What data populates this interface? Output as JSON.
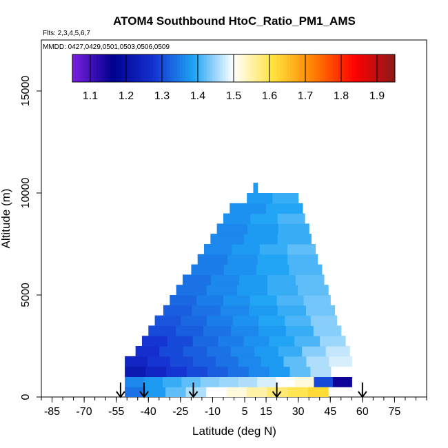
{
  "chart_data": {
    "type": "heatmap",
    "title": "ATOM4 Southbound HtoC_Ratio_PM1_AMS",
    "flights_label": "Flts: 2,3,4,5,6,7",
    "mmdd_label": "MMDD: 0427,0429,0501,0503,0506,0509",
    "xlabel": "Latitude (deg N)",
    "ylabel": "Altitude (m)",
    "xlim": [
      -90,
      90
    ],
    "ylim": [
      0,
      17500
    ],
    "x_ticks": [
      "-85",
      "-70",
      "-55",
      "-40",
      "-25",
      "-10",
      "5",
      "15",
      "30",
      "45",
      "60",
      "75"
    ],
    "x_tick_values": [
      -85,
      -70,
      -55,
      -40,
      -25,
      -10,
      5,
      15,
      30,
      45,
      60,
      75
    ],
    "y_ticks": [
      "0",
      "5000",
      "10000",
      "15000"
    ],
    "y_tick_values": [
      0,
      5000,
      10000,
      15000
    ],
    "colorbar": {
      "min": 1.05,
      "max": 1.95,
      "ticks": [
        "1.1",
        "1.2",
        "1.3",
        "1.4",
        "1.5",
        "1.6",
        "1.7",
        "1.8",
        "1.9"
      ],
      "tick_values": [
        1.1,
        1.2,
        1.3,
        1.4,
        1.5,
        1.6,
        1.7,
        1.8,
        1.9
      ],
      "colors": [
        "#7b1fe0",
        "#00008f",
        "#1530d0",
        "#1ea3f5",
        "#ffffff",
        "#ffe23a",
        "#ff7d00",
        "#ff0000",
        "#8b1a1a"
      ]
    },
    "profile_latitudes": [
      -53,
      -42,
      -19,
      20,
      60
    ],
    "altitude_bins": [
      {
        "z0": 0,
        "z1": 500,
        "lat0": -51,
        "lat1": 44,
        "values": [
          1.34,
          1.38,
          1.42,
          1.46,
          1.5,
          1.52,
          1.55,
          1.58,
          1.6,
          1.62
        ]
      },
      {
        "z0": 500,
        "z1": 1000,
        "lat0": -51,
        "lat1": 55,
        "values": [
          1.36,
          1.38,
          1.4,
          1.42,
          1.44,
          1.45,
          1.46,
          1.48,
          1.5,
          1.52,
          1.3,
          1.15
        ]
      },
      {
        "z0": 1000,
        "z1": 1500,
        "lat0": -51,
        "lat1": 55,
        "values": [
          1.22,
          1.25,
          1.28,
          1.3,
          1.32,
          1.34,
          1.36,
          1.38,
          1.42,
          1.46,
          1.5
        ]
      },
      {
        "z0": 1500,
        "z1": 2000,
        "lat0": -51,
        "lat1": 55,
        "values": [
          1.25,
          1.28,
          1.3,
          1.32,
          1.34,
          1.36,
          1.38,
          1.42,
          1.46,
          1.48
        ]
      },
      {
        "z0": 2000,
        "z1": 2500,
        "lat0": -46,
        "lat1": 54,
        "values": [
          1.27,
          1.3,
          1.32,
          1.34,
          1.36,
          1.38,
          1.4,
          1.44,
          1.47
        ]
      },
      {
        "z0": 2500,
        "z1": 3000,
        "lat0": -43,
        "lat1": 52,
        "values": [
          1.28,
          1.3,
          1.33,
          1.35,
          1.37,
          1.39,
          1.41,
          1.45
        ]
      },
      {
        "z0": 3000,
        "z1": 3500,
        "lat0": -40,
        "lat1": 50,
        "values": [
          1.3,
          1.32,
          1.34,
          1.36,
          1.38,
          1.4,
          1.44
        ]
      },
      {
        "z0": 3500,
        "z1": 4000,
        "lat0": -37,
        "lat1": 48,
        "values": [
          1.31,
          1.33,
          1.35,
          1.37,
          1.39,
          1.41,
          1.44
        ]
      },
      {
        "z0": 4000,
        "z1": 4500,
        "lat0": -33,
        "lat1": 47,
        "values": [
          1.32,
          1.34,
          1.36,
          1.38,
          1.4,
          1.43
        ]
      },
      {
        "z0": 4500,
        "z1": 5000,
        "lat0": -30,
        "lat1": 45,
        "values": [
          1.33,
          1.35,
          1.37,
          1.39,
          1.41,
          1.43
        ]
      },
      {
        "z0": 5000,
        "z1": 5500,
        "lat0": -27,
        "lat1": 44,
        "values": [
          1.34,
          1.36,
          1.38,
          1.4,
          1.42
        ]
      },
      {
        "z0": 5500,
        "z1": 6000,
        "lat0": -24,
        "lat1": 42,
        "values": [
          1.34,
          1.36,
          1.38,
          1.4,
          1.42
        ]
      },
      {
        "z0": 6000,
        "z1": 6500,
        "lat0": -20,
        "lat1": 41,
        "values": [
          1.35,
          1.37,
          1.39,
          1.41
        ]
      },
      {
        "z0": 6500,
        "z1": 7000,
        "lat0": -17,
        "lat1": 39,
        "values": [
          1.35,
          1.37,
          1.39,
          1.41
        ]
      },
      {
        "z0": 7000,
        "z1": 7500,
        "lat0": -14,
        "lat1": 38,
        "values": [
          1.36,
          1.38,
          1.4,
          1.42
        ]
      },
      {
        "z0": 7500,
        "z1": 8000,
        "lat0": -11,
        "lat1": 36,
        "values": [
          1.36,
          1.38,
          1.4
        ]
      },
      {
        "z0": 8000,
        "z1": 8500,
        "lat0": -8,
        "lat1": 35,
        "values": [
          1.36,
          1.38,
          1.4
        ]
      },
      {
        "z0": 8500,
        "z1": 9000,
        "lat0": -5,
        "lat1": 33,
        "values": [
          1.37,
          1.39,
          1.41
        ]
      },
      {
        "z0": 9000,
        "z1": 9500,
        "lat0": -2,
        "lat1": 32,
        "values": [
          1.37,
          1.39
        ]
      },
      {
        "z0": 9500,
        "z1": 10000,
        "lat0": 6,
        "lat1": 30,
        "values": [
          1.38,
          1.4
        ]
      },
      {
        "z0": 10000,
        "z1": 10500,
        "lat0": 9,
        "lat1": 11,
        "values": [
          1.38
        ]
      }
    ]
  }
}
